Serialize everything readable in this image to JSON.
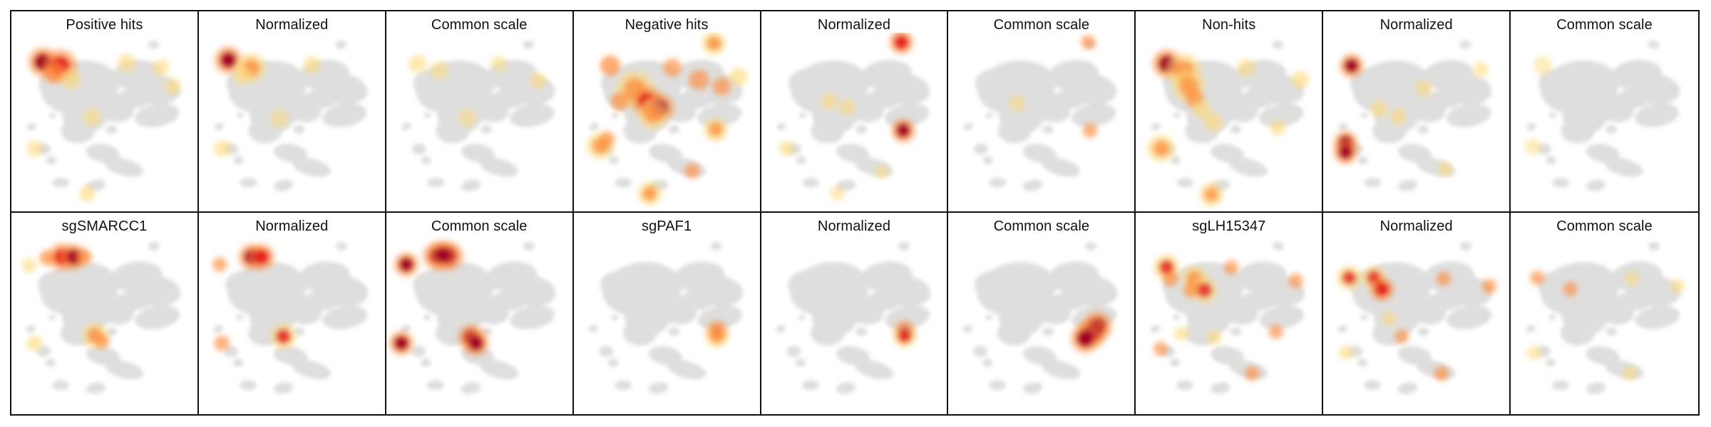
{
  "chart_data": [
    {
      "type": "heatmap",
      "title": "Positive hits",
      "colormap": "YlOrRd",
      "background_color": "#dedede",
      "hotspots": [
        {
          "x": -8.0,
          "y": 6.4,
          "intensity": 0.95,
          "spread": 0.45
        },
        {
          "x": -6.2,
          "y": 6.0,
          "intensity": 0.7,
          "spread": 0.55
        },
        {
          "x": -6.9,
          "y": 5.2,
          "intensity": 0.4,
          "spread": 0.6
        },
        {
          "x": -5.2,
          "y": 4.6,
          "intensity": 0.25,
          "spread": 0.6
        },
        {
          "x": 0.5,
          "y": 6.3,
          "intensity": 0.22,
          "spread": 0.5
        },
        {
          "x": 4.0,
          "y": 5.8,
          "intensity": 0.25,
          "spread": 0.4
        },
        {
          "x": 5.2,
          "y": 3.8,
          "intensity": 0.2,
          "spread": 0.4
        },
        {
          "x": -8.8,
          "y": -2.8,
          "intensity": 0.25,
          "spread": 0.4
        },
        {
          "x": -3.5,
          "y": -7.6,
          "intensity": 0.3,
          "spread": 0.35
        },
        {
          "x": -3.0,
          "y": 0.5,
          "intensity": 0.18,
          "spread": 0.5
        }
      ]
    },
    {
      "type": "heatmap",
      "title": "Normalized",
      "colormap": "YlOrRd",
      "background_color": "#dedede",
      "hotspots": [
        {
          "x": -8.2,
          "y": 6.6,
          "intensity": 0.85,
          "spread": 0.4
        },
        {
          "x": -5.9,
          "y": 5.8,
          "intensity": 0.55,
          "spread": 0.45
        },
        {
          "x": -6.8,
          "y": 5.0,
          "intensity": 0.3,
          "spread": 0.5
        },
        {
          "x": 0.3,
          "y": 6.1,
          "intensity": 0.2,
          "spread": 0.45
        },
        {
          "x": -8.8,
          "y": -2.8,
          "intensity": 0.3,
          "spread": 0.4
        },
        {
          "x": -3.0,
          "y": 0.4,
          "intensity": 0.15,
          "spread": 0.5
        }
      ]
    },
    {
      "type": "heatmap",
      "title": "Common scale",
      "colormap": "YlOrRd",
      "background_color": "#dedede",
      "hotspots": [
        {
          "x": -8.0,
          "y": 6.2,
          "intensity": 0.2,
          "spread": 0.5
        },
        {
          "x": -5.8,
          "y": 5.5,
          "intensity": 0.18,
          "spread": 0.5
        },
        {
          "x": 4.2,
          "y": 4.4,
          "intensity": 0.22,
          "spread": 0.4
        },
        {
          "x": 0.2,
          "y": 6.2,
          "intensity": 0.12,
          "spread": 0.4
        },
        {
          "x": -3.0,
          "y": 0.4,
          "intensity": 0.12,
          "spread": 0.5
        }
      ]
    },
    {
      "type": "heatmap",
      "title": "Negative hits",
      "colormap": "YlOrRd",
      "background_color": "#dedede",
      "hotspots": [
        {
          "x": -7.5,
          "y": 6.0,
          "intensity": 0.45,
          "spread": 0.6
        },
        {
          "x": -5.0,
          "y": 3.5,
          "intensity": 0.5,
          "spread": 0.7
        },
        {
          "x": -3.8,
          "y": 2.2,
          "intensity": 0.75,
          "spread": 0.5
        },
        {
          "x": -2.5,
          "y": 1.5,
          "intensity": 0.85,
          "spread": 0.45
        },
        {
          "x": -3.2,
          "y": 0.8,
          "intensity": 0.5,
          "spread": 0.45
        },
        {
          "x": -6.5,
          "y": 2.2,
          "intensity": 0.4,
          "spread": 0.5
        },
        {
          "x": -1.2,
          "y": 5.8,
          "intensity": 0.35,
          "spread": 0.5
        },
        {
          "x": 1.5,
          "y": 4.5,
          "intensity": 0.35,
          "spread": 0.6
        },
        {
          "x": 3.8,
          "y": 3.8,
          "intensity": 0.35,
          "spread": 0.5
        },
        {
          "x": 5.5,
          "y": 4.8,
          "intensity": 0.3,
          "spread": 0.5
        },
        {
          "x": 3.0,
          "y": 8.4,
          "intensity": 0.55,
          "spread": 0.3
        },
        {
          "x": 3.2,
          "y": -0.8,
          "intensity": 0.55,
          "spread": 0.3
        },
        {
          "x": -8.5,
          "y": -2.5,
          "intensity": 0.55,
          "spread": 0.4
        },
        {
          "x": -3.5,
          "y": -7.6,
          "intensity": 0.55,
          "spread": 0.3
        },
        {
          "x": 0.8,
          "y": -5.2,
          "intensity": 0.35,
          "spread": 0.35
        },
        {
          "x": -7.8,
          "y": -1.8,
          "intensity": 0.35,
          "spread": 0.35
        }
      ]
    },
    {
      "type": "heatmap",
      "title": "Normalized",
      "colormap": "YlOrRd",
      "background_color": "#dedede",
      "hotspots": [
        {
          "x": 3.0,
          "y": 8.5,
          "intensity": 0.8,
          "spread": 0.3
        },
        {
          "x": 3.2,
          "y": -0.9,
          "intensity": 0.85,
          "spread": 0.3
        },
        {
          "x": -4.3,
          "y": 2.2,
          "intensity": 0.25,
          "spread": 0.4
        },
        {
          "x": -8.6,
          "y": -2.8,
          "intensity": 0.3,
          "spread": 0.35
        },
        {
          "x": 1.0,
          "y": -5.3,
          "intensity": 0.15,
          "spread": 0.3
        },
        {
          "x": -3.5,
          "y": -7.6,
          "intensity": 0.15,
          "spread": 0.3
        },
        {
          "x": -2.5,
          "y": 1.6,
          "intensity": 0.2,
          "spread": 0.4
        }
      ]
    },
    {
      "type": "heatmap",
      "title": "Common scale",
      "colormap": "YlOrRd",
      "background_color": "#dedede",
      "hotspots": [
        {
          "x": 3.0,
          "y": 8.5,
          "intensity": 0.35,
          "spread": 0.3
        },
        {
          "x": 3.2,
          "y": -0.9,
          "intensity": 0.4,
          "spread": 0.3
        },
        {
          "x": -4.2,
          "y": 2.0,
          "intensity": 0.12,
          "spread": 0.4
        }
      ]
    },
    {
      "type": "heatmap",
      "title": "Non-hits",
      "colormap": "YlOrRd",
      "background_color": "#dedede",
      "hotspots": [
        {
          "x": -8.0,
          "y": 6.2,
          "intensity": 0.95,
          "spread": 0.45
        },
        {
          "x": -6.3,
          "y": 5.5,
          "intensity": 0.55,
          "spread": 0.6
        },
        {
          "x": -5.8,
          "y": 3.8,
          "intensity": 0.5,
          "spread": 0.55
        },
        {
          "x": -5.2,
          "y": 2.5,
          "intensity": 0.45,
          "spread": 0.5
        },
        {
          "x": -4.5,
          "y": 1.4,
          "intensity": 0.3,
          "spread": 0.5
        },
        {
          "x": -3.3,
          "y": 0.0,
          "intensity": 0.3,
          "spread": 0.5
        },
        {
          "x": 5.5,
          "y": 4.5,
          "intensity": 0.3,
          "spread": 0.45
        },
        {
          "x": 3.2,
          "y": -0.6,
          "intensity": 0.3,
          "spread": 0.35
        },
        {
          "x": -8.6,
          "y": -2.8,
          "intensity": 0.5,
          "spread": 0.4
        },
        {
          "x": -3.5,
          "y": -7.7,
          "intensity": 0.5,
          "spread": 0.3
        },
        {
          "x": 0.0,
          "y": 5.8,
          "intensity": 0.2,
          "spread": 0.5
        }
      ]
    },
    {
      "type": "heatmap",
      "title": "Normalized",
      "colormap": "YlOrRd",
      "background_color": "#dedede",
      "hotspots": [
        {
          "x": -8.3,
          "y": 6.0,
          "intensity": 0.85,
          "spread": 0.3
        },
        {
          "x": -8.9,
          "y": -2.2,
          "intensity": 0.9,
          "spread": 0.3
        },
        {
          "x": -8.9,
          "y": -3.2,
          "intensity": 0.85,
          "spread": 0.3
        },
        {
          "x": -5.5,
          "y": 1.4,
          "intensity": 0.3,
          "spread": 0.4
        },
        {
          "x": -3.6,
          "y": 0.6,
          "intensity": 0.25,
          "spread": 0.4
        },
        {
          "x": -1.0,
          "y": 3.6,
          "intensity": 0.2,
          "spread": 0.4
        },
        {
          "x": 4.8,
          "y": 5.6,
          "intensity": 0.2,
          "spread": 0.35
        },
        {
          "x": 1.2,
          "y": -5.0,
          "intensity": 0.2,
          "spread": 0.3
        }
      ]
    },
    {
      "type": "heatmap",
      "title": "Common scale",
      "colormap": "YlOrRd",
      "background_color": "#dedede",
      "hotspots": [
        {
          "x": -8.0,
          "y": 6.0,
          "intensity": 0.08,
          "spread": 0.5
        },
        {
          "x": -9.0,
          "y": -2.6,
          "intensity": 0.08,
          "spread": 0.4
        }
      ]
    },
    {
      "type": "heatmap",
      "title": "sgSMARCC1",
      "colormap": "YlOrRd",
      "background_color": "#dedede",
      "hotspots": [
        {
          "x": -6.0,
          "y": 7.1,
          "intensity": 0.75,
          "spread": 0.4
        },
        {
          "x": -4.8,
          "y": 7.1,
          "intensity": 0.85,
          "spread": 0.35
        },
        {
          "x": -7.5,
          "y": 7.0,
          "intensity": 0.4,
          "spread": 0.35
        },
        {
          "x": -3.8,
          "y": 7.1,
          "intensity": 0.45,
          "spread": 0.35
        },
        {
          "x": -8.8,
          "y": -2.0,
          "intensity": 0.3,
          "spread": 0.35
        },
        {
          "x": -2.7,
          "y": -1.2,
          "intensity": 0.55,
          "spread": 0.35
        },
        {
          "x": -2.0,
          "y": -1.8,
          "intensity": 0.35,
          "spread": 0.35
        },
        {
          "x": -9.3,
          "y": 6.2,
          "intensity": 0.25,
          "spread": 0.3
        }
      ]
    },
    {
      "type": "heatmap",
      "title": "Normalized",
      "colormap": "YlOrRd",
      "background_color": "#dedede",
      "hotspots": [
        {
          "x": -5.8,
          "y": 7.1,
          "intensity": 0.85,
          "spread": 0.35
        },
        {
          "x": -4.8,
          "y": 7.1,
          "intensity": 0.8,
          "spread": 0.35
        },
        {
          "x": -8.8,
          "y": -2.0,
          "intensity": 0.35,
          "spread": 0.35
        },
        {
          "x": -2.6,
          "y": -1.3,
          "intensity": 0.65,
          "spread": 0.35
        },
        {
          "x": -9.0,
          "y": 6.3,
          "intensity": 0.35,
          "spread": 0.3
        }
      ]
    },
    {
      "type": "heatmap",
      "title": "Common scale",
      "colormap": "YlOrRd",
      "background_color": "#dedede",
      "hotspots": [
        {
          "x": -6.0,
          "y": 7.2,
          "intensity": 1.0,
          "spread": 0.42
        },
        {
          "x": -4.8,
          "y": 7.2,
          "intensity": 1.0,
          "spread": 0.42
        },
        {
          "x": -5.4,
          "y": 7.3,
          "intensity": 1.0,
          "spread": 0.42
        },
        {
          "x": -9.1,
          "y": 6.3,
          "intensity": 0.95,
          "spread": 0.3
        },
        {
          "x": -9.6,
          "y": -2.0,
          "intensity": 0.9,
          "spread": 0.3
        },
        {
          "x": -2.6,
          "y": -1.4,
          "intensity": 0.9,
          "spread": 0.35
        },
        {
          "x": -2.1,
          "y": -2.0,
          "intensity": 0.85,
          "spread": 0.35
        }
      ]
    },
    {
      "type": "heatmap",
      "title": "sgPAF1",
      "colormap": "YlOrRd",
      "background_color": "#dedede",
      "hotspots": [
        {
          "x": 3.3,
          "y": -0.8,
          "intensity": 0.7,
          "spread": 0.25
        },
        {
          "x": 3.3,
          "y": -1.3,
          "intensity": 0.5,
          "spread": 0.25
        }
      ]
    },
    {
      "type": "heatmap",
      "title": "Normalized",
      "colormap": "YlOrRd",
      "background_color": "#dedede",
      "hotspots": [
        {
          "x": 3.3,
          "y": -0.8,
          "intensity": 0.85,
          "spread": 0.25
        },
        {
          "x": 3.3,
          "y": -1.3,
          "intensity": 0.6,
          "spread": 0.25
        }
      ]
    },
    {
      "type": "heatmap",
      "title": "Common scale",
      "colormap": "YlOrRd",
      "background_color": "#dedede",
      "hotspots": [
        {
          "x": 3.9,
          "y": -0.2,
          "intensity": 1.0,
          "spread": 0.45
        },
        {
          "x": 3.4,
          "y": -0.9,
          "intensity": 1.0,
          "spread": 0.45
        },
        {
          "x": 2.7,
          "y": -1.5,
          "intensity": 1.0,
          "spread": 0.45
        }
      ]
    },
    {
      "type": "heatmap",
      "title": "sgLH15347",
      "colormap": "YlOrRd",
      "background_color": "#dedede",
      "hotspots": [
        {
          "x": -8.0,
          "y": 6.0,
          "intensity": 0.65,
          "spread": 0.35
        },
        {
          "x": -7.6,
          "y": 4.8,
          "intensity": 0.4,
          "spread": 0.35
        },
        {
          "x": -5.2,
          "y": 4.8,
          "intensity": 0.55,
          "spread": 0.35
        },
        {
          "x": -4.2,
          "y": 3.6,
          "intensity": 0.6,
          "spread": 0.35
        },
        {
          "x": -5.5,
          "y": 3.6,
          "intensity": 0.4,
          "spread": 0.35
        },
        {
          "x": -1.5,
          "y": 6.0,
          "intensity": 0.35,
          "spread": 0.3
        },
        {
          "x": 5.0,
          "y": 4.6,
          "intensity": 0.35,
          "spread": 0.3
        },
        {
          "x": 3.0,
          "y": -0.8,
          "intensity": 0.35,
          "spread": 0.3
        },
        {
          "x": -8.6,
          "y": -2.6,
          "intensity": 0.35,
          "spread": 0.3
        },
        {
          "x": -3.2,
          "y": -1.4,
          "intensity": 0.3,
          "spread": 0.3
        },
        {
          "x": 0.6,
          "y": -5.2,
          "intensity": 0.35,
          "spread": 0.3
        },
        {
          "x": -6.5,
          "y": -1.0,
          "intensity": 0.25,
          "spread": 0.3
        }
      ]
    },
    {
      "type": "heatmap",
      "title": "Normalized",
      "colormap": "YlOrRd",
      "background_color": "#dedede",
      "hotspots": [
        {
          "x": -8.5,
          "y": 4.9,
          "intensity": 0.6,
          "spread": 0.3
        },
        {
          "x": -6.0,
          "y": 4.9,
          "intensity": 0.6,
          "spread": 0.3
        },
        {
          "x": -5.2,
          "y": 3.7,
          "intensity": 0.75,
          "spread": 0.3
        },
        {
          "x": 1.0,
          "y": 4.8,
          "intensity": 0.35,
          "spread": 0.3
        },
        {
          "x": 5.6,
          "y": 4.0,
          "intensity": 0.4,
          "spread": 0.3
        },
        {
          "x": -3.2,
          "y": -1.3,
          "intensity": 0.35,
          "spread": 0.3
        },
        {
          "x": 0.8,
          "y": -5.2,
          "intensity": 0.4,
          "spread": 0.3
        },
        {
          "x": -8.8,
          "y": -3.0,
          "intensity": 0.25,
          "spread": 0.3
        },
        {
          "x": -4.5,
          "y": 0.6,
          "intensity": 0.25,
          "spread": 0.3
        }
      ]
    },
    {
      "type": "heatmap",
      "title": "Common scale",
      "colormap": "YlOrRd",
      "background_color": "#dedede",
      "hotspots": [
        {
          "x": -8.5,
          "y": 4.9,
          "intensity": 0.35,
          "spread": 0.3
        },
        {
          "x": -5.2,
          "y": 3.7,
          "intensity": 0.35,
          "spread": 0.3
        },
        {
          "x": 1.0,
          "y": 4.8,
          "intensity": 0.2,
          "spread": 0.3
        },
        {
          "x": 5.6,
          "y": 4.0,
          "intensity": 0.25,
          "spread": 0.3
        },
        {
          "x": -8.8,
          "y": -3.0,
          "intensity": 0.18,
          "spread": 0.3
        },
        {
          "x": 0.8,
          "y": -5.2,
          "intensity": 0.2,
          "spread": 0.3
        }
      ]
    }
  ]
}
